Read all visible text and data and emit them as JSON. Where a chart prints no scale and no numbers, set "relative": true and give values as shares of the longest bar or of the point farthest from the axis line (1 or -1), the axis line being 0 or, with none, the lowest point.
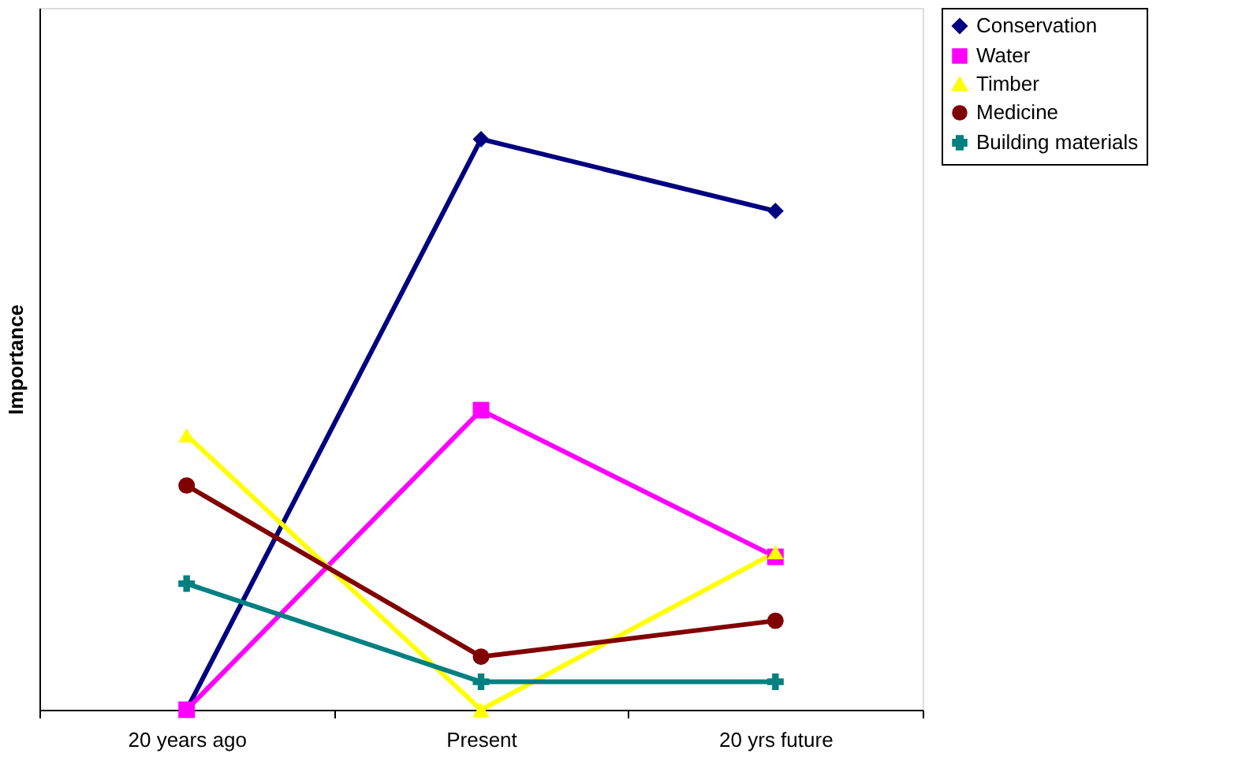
{
  "chart_data": {
    "type": "line",
    "relative": true,
    "ylabel": "Importance",
    "categories": [
      "20 years ago",
      "Present",
      "20 yrs future"
    ],
    "legend": "right",
    "grid": false,
    "series": [
      {
        "name": "Conservation",
        "color": "#000080",
        "marker": "diamond",
        "values": [
          0,
          1,
          0.874
        ]
      },
      {
        "name": "Water",
        "color": "#ff00ff",
        "marker": "square",
        "values": [
          0,
          0.525,
          0.268
        ]
      },
      {
        "name": "Timber",
        "color": "#ffff00",
        "marker": "triangle",
        "values": [
          0.481,
          0,
          0.276
        ]
      },
      {
        "name": "Medicine",
        "color": "#800000",
        "marker": "circle",
        "values": [
          0.393,
          0.093,
          0.156
        ]
      },
      {
        "name": "Building materials",
        "color": "#008080",
        "marker": "cross",
        "values": [
          0.221,
          0.049,
          0.049
        ]
      }
    ]
  }
}
